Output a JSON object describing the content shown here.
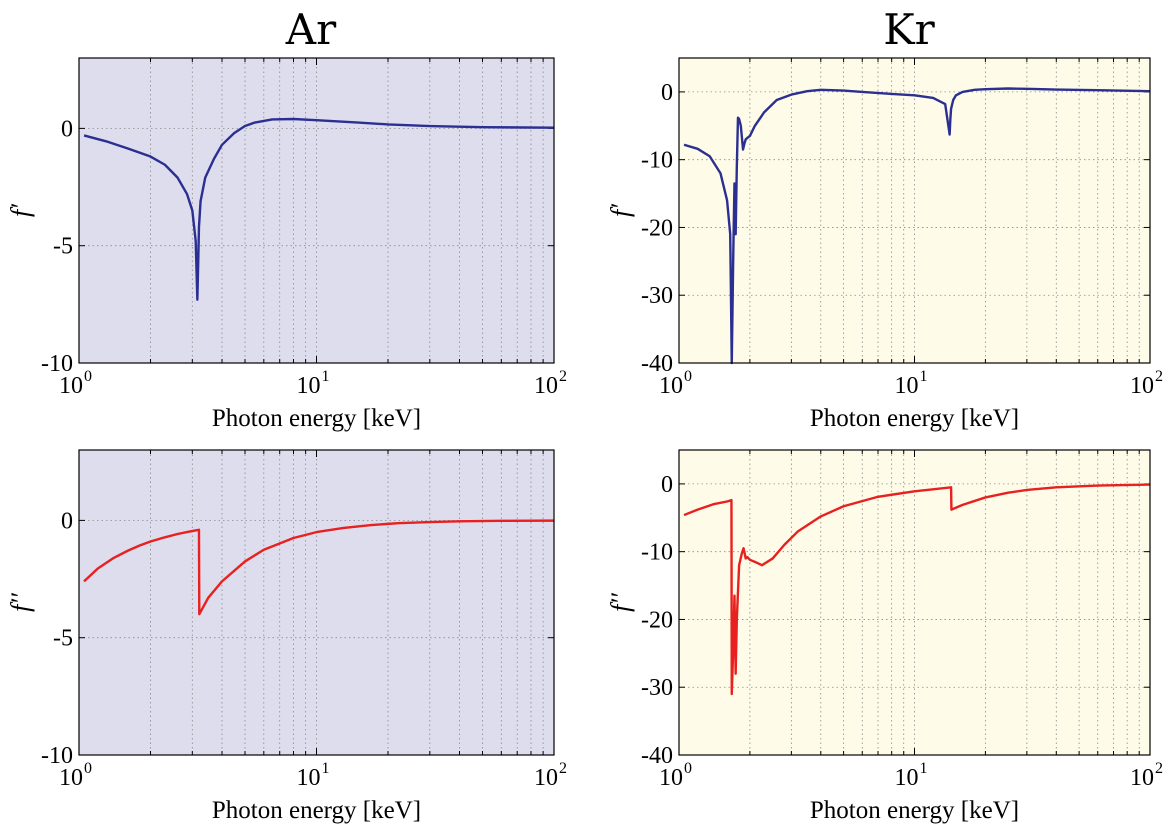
{
  "figure": {
    "column_titles": [
      "Ar",
      "Kr"
    ]
  },
  "chart_data": [
    {
      "type": "line",
      "panel": "Ar-f-prime",
      "background": "#dedded",
      "xscale": "log",
      "xlim": [
        1,
        100
      ],
      "xticks": [
        {
          "base": "10",
          "exp": "0"
        },
        {
          "base": "10",
          "exp": "1"
        },
        {
          "base": "10",
          "exp": "2"
        }
      ],
      "xlabel": "Photon energy [keV]",
      "ylabel": "f′",
      "ylim": [
        -10,
        3
      ],
      "yticks": [
        0,
        -5,
        -10
      ],
      "grid": true,
      "series": [
        {
          "color": "#2b2f92",
          "x": [
            1.05,
            1.3,
            1.6,
            2.0,
            2.3,
            2.6,
            2.85,
            3.0,
            3.1,
            3.15,
            3.18,
            3.2,
            3.25,
            3.4,
            3.7,
            4.0,
            4.5,
            5.0,
            5.5,
            6.5,
            8.0,
            10,
            15,
            20,
            30,
            50,
            100
          ],
          "y": [
            -0.3,
            -0.55,
            -0.85,
            -1.2,
            -1.55,
            -2.1,
            -2.8,
            -3.5,
            -4.8,
            -7.3,
            -5.5,
            -4.2,
            -3.1,
            -2.1,
            -1.3,
            -0.7,
            -0.2,
            0.1,
            0.25,
            0.38,
            0.4,
            0.35,
            0.25,
            0.17,
            0.1,
            0.05,
            0.03
          ]
        }
      ]
    },
    {
      "type": "line",
      "panel": "Kr-f-prime",
      "background": "#fefce8",
      "xscale": "log",
      "xlim": [
        1,
        100
      ],
      "xticks": [
        {
          "base": "10",
          "exp": "0"
        },
        {
          "base": "10",
          "exp": "1"
        },
        {
          "base": "10",
          "exp": "2"
        }
      ],
      "xlabel": "Photon energy [keV]",
      "ylabel": "f′",
      "ylim": [
        -40,
        5
      ],
      "yticks": [
        0,
        -10,
        -20,
        -30,
        -40
      ],
      "grid": true,
      "series": [
        {
          "color": "#2b2f92",
          "x": [
            1.05,
            1.2,
            1.35,
            1.5,
            1.6,
            1.65,
            1.675,
            1.7,
            1.72,
            1.74,
            1.76,
            1.78,
            1.8,
            1.83,
            1.87,
            1.9,
            1.92,
            1.95,
            2.0,
            2.1,
            2.3,
            2.6,
            3.0,
            3.5,
            4.0,
            5.0,
            6.0,
            8.0,
            10,
            12,
            13.5,
            14.1,
            14.2,
            14.3,
            14.6,
            15,
            16,
            18,
            20,
            25,
            30,
            40,
            60,
            100
          ],
          "y": [
            -7.8,
            -8.4,
            -9.5,
            -12,
            -16,
            -21,
            -40,
            -24,
            -13.5,
            -21,
            -11,
            -3.8,
            -4.0,
            -5.0,
            -8.5,
            -7.5,
            -7.0,
            -6.8,
            -6.5,
            -5.0,
            -3.0,
            -1.2,
            -0.4,
            0.1,
            0.3,
            0.2,
            0.0,
            -0.3,
            -0.5,
            -0.9,
            -1.8,
            -6.3,
            -4.0,
            -2.5,
            -1.2,
            -0.5,
            0.0,
            0.3,
            0.4,
            0.5,
            0.45,
            0.35,
            0.25,
            0.1
          ]
        }
      ]
    },
    {
      "type": "line",
      "panel": "Ar-f-double-prime",
      "background": "#dedded",
      "xscale": "log",
      "xlim": [
        1,
        100
      ],
      "xticks": [
        {
          "base": "10",
          "exp": "0"
        },
        {
          "base": "10",
          "exp": "1"
        },
        {
          "base": "10",
          "exp": "2"
        }
      ],
      "xlabel": "Photon energy [keV]",
      "ylabel": "f′′",
      "ylim": [
        -10,
        3
      ],
      "yticks": [
        0,
        -5,
        -10
      ],
      "grid": true,
      "series": [
        {
          "color": "#e8201f",
          "x": [
            1.05,
            1.2,
            1.4,
            1.6,
            1.8,
            2.0,
            2.3,
            2.6,
            2.9,
            3.2,
            3.21,
            3.5,
            4.0,
            5.0,
            6.0,
            8.0,
            10,
            13,
            17,
            22,
            30,
            40,
            60,
            100
          ],
          "y": [
            -2.6,
            -2.05,
            -1.6,
            -1.3,
            -1.07,
            -0.9,
            -0.72,
            -0.58,
            -0.48,
            -0.4,
            -4.0,
            -3.3,
            -2.6,
            -1.75,
            -1.25,
            -0.75,
            -0.5,
            -0.32,
            -0.2,
            -0.12,
            -0.07,
            -0.04,
            -0.02,
            -0.01
          ]
        }
      ]
    },
    {
      "type": "line",
      "panel": "Kr-f-double-prime",
      "background": "#fefce8",
      "xscale": "log",
      "xlim": [
        1,
        100
      ],
      "xticks": [
        {
          "base": "10",
          "exp": "0"
        },
        {
          "base": "10",
          "exp": "1"
        },
        {
          "base": "10",
          "exp": "2"
        }
      ],
      "xlabel": "Photon energy [keV]",
      "ylabel": "f′′",
      "ylim": [
        -40,
        5
      ],
      "yticks": [
        0,
        -10,
        -20,
        -30,
        -40
      ],
      "grid": true,
      "series": [
        {
          "color": "#e8201f",
          "x": [
            1.05,
            1.2,
            1.4,
            1.6,
            1.67,
            1.675,
            1.7,
            1.72,
            1.74,
            1.76,
            1.8,
            1.85,
            1.88,
            1.92,
            1.95,
            2.0,
            2.1,
            2.25,
            2.5,
            2.8,
            3.2,
            4.0,
            5.0,
            7.0,
            10,
            12,
            14.3,
            14.35,
            16,
            20,
            25,
            30,
            40,
            60,
            100
          ],
          "y": [
            -4.6,
            -3.8,
            -3.0,
            -2.6,
            -2.4,
            -31,
            -24,
            -16.5,
            -28,
            -20,
            -12,
            -10.2,
            -9.5,
            -11.0,
            -10.8,
            -11.2,
            -11.5,
            -12.0,
            -11.0,
            -9.0,
            -7.0,
            -4.8,
            -3.3,
            -1.9,
            -1.1,
            -0.8,
            -0.5,
            -3.8,
            -3.1,
            -2.0,
            -1.3,
            -0.9,
            -0.5,
            -0.25,
            -0.1
          ]
        }
      ]
    }
  ]
}
